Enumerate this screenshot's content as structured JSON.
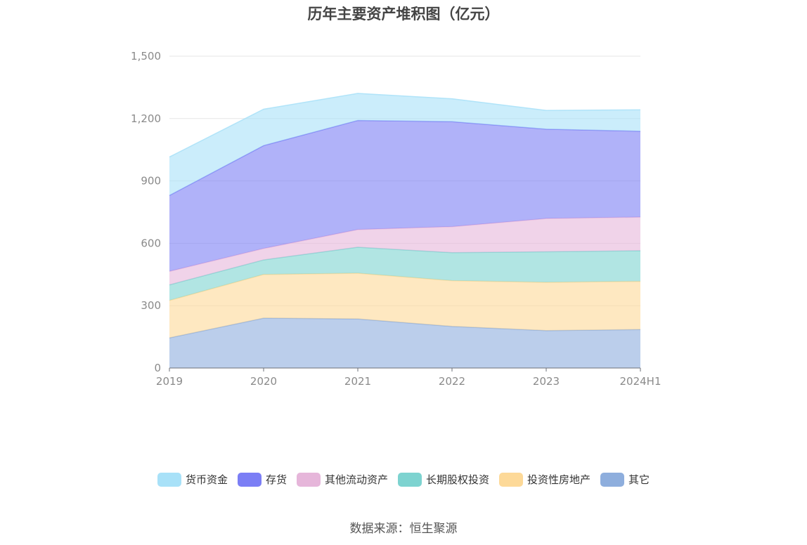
{
  "chart_data": {
    "type": "area",
    "stacked": true,
    "title": "历年主要资产堆积图（亿元）",
    "xlabel": "",
    "ylabel": "",
    "categories": [
      "2019",
      "2020",
      "2021",
      "2022",
      "2023",
      "2024H1"
    ],
    "ylim": [
      0,
      1500
    ],
    "yticks": [
      0,
      300,
      600,
      900,
      1200,
      1500
    ],
    "ytick_labels": [
      "0",
      "300",
      "600",
      "900",
      "1,200",
      "1,500"
    ],
    "grid": true,
    "legend_position": "bottom",
    "series": [
      {
        "name": "其它",
        "color": "#8eaedd",
        "values": [
          145,
          240,
          236,
          200,
          180,
          185
        ]
      },
      {
        "name": "投资性房地产",
        "color": "#fdd998",
        "values": [
          180,
          210,
          220,
          220,
          232,
          232
        ]
      },
      {
        "name": "长期股权投资",
        "color": "#7dd3d0",
        "values": [
          75,
          70,
          125,
          135,
          147,
          147
        ]
      },
      {
        "name": "其他流动资产",
        "color": "#e6b6da",
        "values": [
          65,
          55,
          85,
          125,
          160,
          162
        ]
      },
      {
        "name": "存货",
        "color": "#7b7ef5",
        "values": [
          365,
          495,
          525,
          505,
          430,
          413
        ]
      },
      {
        "name": "货币资金",
        "color": "#a8e1f8",
        "values": [
          185,
          175,
          130,
          110,
          90,
          103
        ]
      }
    ],
    "legend_order": [
      "货币资金",
      "存货",
      "其他流动资产",
      "长期股权投资",
      "投资性房地产",
      "其它"
    ]
  },
  "source": "数据来源：恒生聚源"
}
